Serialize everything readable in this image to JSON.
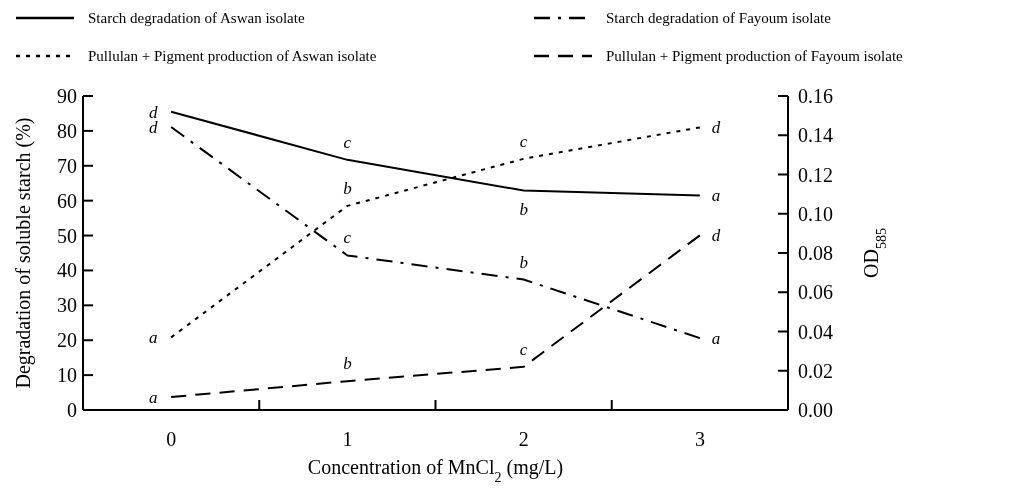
{
  "chart_data": {
    "type": "line",
    "xlabel": "Concentration of MnCl$_{2}$ (mg/L)",
    "ylabel": "Degradation of soluble starch (%)",
    "y2label": "OD$_{585}$",
    "categories": [
      "0",
      "1",
      "2",
      "3"
    ],
    "ylim": [
      0,
      90
    ],
    "yticks": [
      0,
      10,
      20,
      30,
      40,
      50,
      60,
      70,
      80,
      90
    ],
    "y2lim": [
      0,
      0.16
    ],
    "y2ticks": [
      {
        "value": 0,
        "label": "0.00"
      },
      {
        "value": 0.02,
        "label": "0.02"
      },
      {
        "value": 0.04,
        "label": "0.04"
      },
      {
        "value": 0.06,
        "label": "0.06"
      },
      {
        "value": 0.08,
        "label": "0.08"
      },
      {
        "value": 0.1,
        "label": "0.10"
      },
      {
        "value": 0.12,
        "label": "0.12"
      },
      {
        "value": 0.14,
        "label": "0.14"
      },
      {
        "value": 0.16,
        "label": "0.16"
      }
    ],
    "legend": "top",
    "grid": false,
    "marker": "none",
    "series": [
      {
        "name": "Starch degradation of Aswan isolate",
        "color": "#000000",
        "line_style": "solid",
        "values": [
          85.5,
          71.7,
          62.9,
          61.5
        ],
        "value_labels": [
          "d",
          "c",
          "b",
          "a"
        ]
      },
      {
        "name": "Starch degradation of Fayoum isolate",
        "color": "#000000",
        "line_style": "dashdot",
        "values": [
          81.1,
          44.3,
          37.4,
          20.6
        ],
        "value_labels": [
          "d",
          "c",
          "b",
          "a"
        ]
      },
      {
        "name": "Pullulan + Pigment production of Aswan isolate",
        "color": "#000000",
        "line_style": "dotted",
        "axis": "y2",
        "values": [
          0.037,
          0.104,
          0.128,
          0.144
        ],
        "value_labels": [
          "a",
          "b",
          "c",
          "d"
        ]
      },
      {
        "name": "Pullulan + Pigment production of Fayoum isolate",
        "color": "#000000",
        "line_style": "dashed",
        "axis": "y2",
        "values": [
          0.0066,
          0.0147,
          0.022,
          0.089
        ],
        "value_labels": [
          "a",
          "b",
          "c",
          "d"
        ]
      }
    ]
  }
}
